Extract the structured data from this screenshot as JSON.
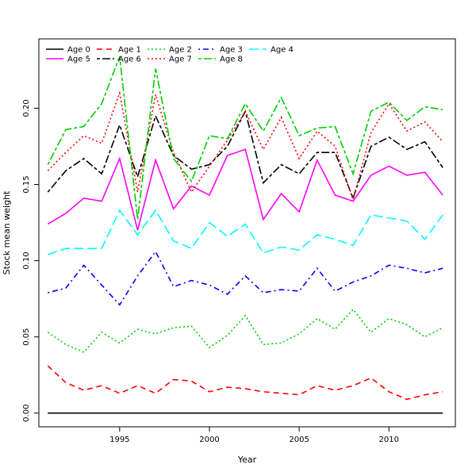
{
  "chart_data": {
    "type": "line",
    "xlabel": "Year",
    "ylabel": "Stock mean weight",
    "xlim": [
      1990.5,
      2013.7
    ],
    "ylim": [
      -0.009,
      0.2455
    ],
    "x_ticks": [
      1995,
      2000,
      2005,
      2010
    ],
    "y_ticks": [
      0.0,
      0.05,
      0.1,
      0.15,
      0.2
    ],
    "y_tick_labels": [
      "0.00",
      "0.05",
      "0.10",
      "0.15",
      "0.20"
    ],
    "legend_position": "top-left",
    "x": [
      1991,
      1992,
      1993,
      1994,
      1995,
      1996,
      1997,
      1998,
      1999,
      2000,
      2001,
      2002,
      2003,
      2004,
      2005,
      2006,
      2007,
      2008,
      2009,
      2010,
      2011,
      2012,
      2013
    ],
    "series": [
      {
        "name": "Age 0",
        "color": "#000000",
        "dash": "solid",
        "values": [
          0,
          0,
          0,
          0,
          0,
          0,
          0,
          0,
          0,
          0,
          0,
          0,
          0,
          0,
          0,
          0,
          0,
          0,
          0,
          0,
          0,
          0,
          0
        ]
      },
      {
        "name": "Age 1",
        "color": "#ff0000",
        "dash": "dashed",
        "values": [
          0.031,
          0.02,
          0.015,
          0.018,
          0.013,
          0.018,
          0.013,
          0.022,
          0.021,
          0.014,
          0.017,
          0.016,
          0.014,
          0.013,
          0.012,
          0.018,
          0.015,
          0.018,
          0.023,
          0.014,
          0.009,
          0.012,
          0.014
        ]
      },
      {
        "name": "Age 2",
        "color": "#00cd00",
        "dash": "dotted",
        "values": [
          0.053,
          0.045,
          0.04,
          0.053,
          0.046,
          0.055,
          0.052,
          0.056,
          0.057,
          0.043,
          0.051,
          0.064,
          0.045,
          0.046,
          0.052,
          0.062,
          0.055,
          0.068,
          0.053,
          0.062,
          0.058,
          0.05,
          0.056
        ]
      },
      {
        "name": "Age 3",
        "color": "#0000ff",
        "dash": "dotdash",
        "values": [
          0.079,
          0.082,
          0.097,
          0.084,
          0.071,
          0.09,
          0.106,
          0.083,
          0.087,
          0.084,
          0.078,
          0.09,
          0.079,
          0.081,
          0.08,
          0.095,
          0.08,
          0.086,
          0.09,
          0.097,
          0.095,
          0.092,
          0.095
        ]
      },
      {
        "name": "Age 4",
        "color": "#00ffff",
        "dash": "longdash",
        "values": [
          0.104,
          0.108,
          0.108,
          0.108,
          0.133,
          0.117,
          0.133,
          0.113,
          0.108,
          0.125,
          0.116,
          0.124,
          0.105,
          0.109,
          0.107,
          0.117,
          0.114,
          0.11,
          0.13,
          0.128,
          0.126,
          0.114,
          0.13
        ]
      },
      {
        "name": "Age 5",
        "color": "#ff00ff",
        "dash": "solid",
        "values": [
          0.124,
          0.131,
          0.141,
          0.139,
          0.167,
          0.12,
          0.166,
          0.134,
          0.149,
          0.143,
          0.169,
          0.173,
          0.127,
          0.144,
          0.132,
          0.166,
          0.143,
          0.139,
          0.156,
          0.162,
          0.156,
          0.158,
          0.143
        ]
      },
      {
        "name": "Age 6",
        "color": "#000000",
        "dash": "twodash",
        "values": [
          0.145,
          0.159,
          0.167,
          0.157,
          0.189,
          0.155,
          0.195,
          0.169,
          0.16,
          0.163,
          0.175,
          0.198,
          0.151,
          0.163,
          0.157,
          0.171,
          0.171,
          0.141,
          0.175,
          0.181,
          0.173,
          0.178,
          0.161
        ]
      },
      {
        "name": "Age 7",
        "color": "#ff0000",
        "dash": "dotted",
        "values": [
          0.159,
          0.171,
          0.182,
          0.177,
          0.21,
          0.145,
          0.209,
          0.171,
          0.145,
          0.162,
          0.179,
          0.198,
          0.173,
          0.194,
          0.167,
          0.185,
          0.175,
          0.14,
          0.184,
          0.203,
          0.185,
          0.191,
          0.178
        ]
      },
      {
        "name": "Age 8",
        "color": "#00cd00",
        "dash": "twodash",
        "values": [
          0.163,
          0.186,
          0.188,
          0.203,
          0.234,
          0.127,
          0.226,
          0.167,
          0.152,
          0.182,
          0.18,
          0.203,
          0.185,
          0.207,
          0.182,
          0.187,
          0.188,
          0.157,
          0.198,
          0.204,
          0.192,
          0.201,
          0.199
        ]
      }
    ]
  }
}
